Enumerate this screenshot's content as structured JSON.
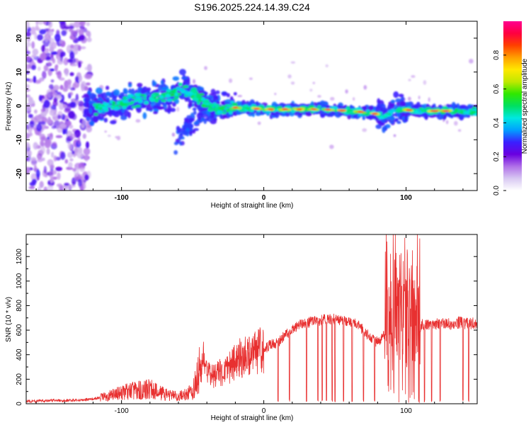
{
  "chart_data": [
    {
      "type": "heatmap",
      "title": "S196.2025.224.14.39.C24",
      "xlabel": "Height of straight line (km)",
      "ylabel": "Frequency (Hz)",
      "xlim": [
        -167,
        150
      ],
      "ylim": [
        -25,
        25
      ],
      "xticks": [
        -100,
        0,
        100
      ],
      "xtick_labels": [
        "-100",
        "0",
        "100"
      ],
      "yticks": [
        20,
        10,
        0,
        -10,
        -20
      ],
      "ytick_labels": [
        "20",
        "10",
        "0",
        "-10",
        "-20"
      ],
      "colorbar": {
        "label": "Normalized spectral amplitude",
        "range": [
          0,
          1
        ],
        "ticks": [
          0,
          0.2,
          0.4,
          0.6,
          0.8
        ],
        "tick_labels": [
          "0.0",
          "0.2",
          "0.4",
          "0.6",
          "0.8"
        ],
        "colors": [
          "#ffffff",
          "#d8c8f2",
          "#b070e8",
          "#6a00e0",
          "#3a20ff",
          "#00a0ff",
          "#00e8e0",
          "#00e060",
          "#30e800",
          "#c0e800",
          "#ffe800",
          "#ffa000",
          "#ff4000",
          "#ff0040",
          "#ff0090"
        ]
      },
      "ridge_frequency_vs_height": [
        {
          "x": -125,
          "y": -1
        },
        {
          "x": -110,
          "y": 0
        },
        {
          "x": -95,
          "y": 1.5
        },
        {
          "x": -80,
          "y": 2
        },
        {
          "x": -65,
          "y": 3
        },
        {
          "x": -55,
          "y": 5
        },
        {
          "x": -45,
          "y": 2
        },
        {
          "x": -35,
          "y": -1
        },
        {
          "x": -20,
          "y": -0.5
        },
        {
          "x": 0,
          "y": -1
        },
        {
          "x": 20,
          "y": -1
        },
        {
          "x": 40,
          "y": -1
        },
        {
          "x": 60,
          "y": -1.5
        },
        {
          "x": 75,
          "y": -2
        },
        {
          "x": 85,
          "y": -3
        },
        {
          "x": 95,
          "y": -1
        },
        {
          "x": 110,
          "y": -1.5
        },
        {
          "x": 130,
          "y": -1.5
        },
        {
          "x": 148,
          "y": -1.5
        }
      ]
    },
    {
      "type": "line",
      "xlabel": "Height of straight line (km)",
      "ylabel": "SNR (10 * v/v)",
      "xlim": [
        -167,
        150
      ],
      "ylim": [
        0,
        1380
      ],
      "xticks": [
        -100,
        0,
        100
      ],
      "xtick_labels": [
        "-100",
        "0",
        "100"
      ],
      "yticks": [
        0,
        200,
        400,
        600,
        800,
        1000,
        1200
      ],
      "ytick_labels": [
        "0",
        "200",
        "400",
        "600",
        "800",
        "1000",
        "1200"
      ],
      "series_color": "#e83030",
      "series": [
        {
          "name": "SNR",
          "x": [
            -167,
            -150,
            -130,
            -120,
            -110,
            -100,
            -90,
            -80,
            -70,
            -60,
            -50,
            -45,
            -40,
            -35,
            -30,
            -25,
            -20,
            -15,
            -10,
            -5,
            0,
            5,
            10,
            15,
            20,
            25,
            30,
            35,
            40,
            45,
            50,
            55,
            60,
            65,
            70,
            75,
            80,
            85,
            90,
            95,
            100,
            105,
            110,
            115,
            120,
            125,
            130,
            135,
            140,
            145,
            150
          ],
          "y": [
            20,
            25,
            30,
            40,
            60,
            90,
            110,
            120,
            80,
            60,
            100,
            300,
            240,
            220,
            260,
            280,
            350,
            380,
            400,
            430,
            450,
            480,
            500,
            560,
            600,
            640,
            660,
            670,
            680,
            690,
            690,
            680,
            660,
            650,
            600,
            540,
            500,
            560,
            640,
            700,
            660,
            650,
            640,
            640,
            650,
            650,
            650,
            660,
            660,
            650,
            660
          ]
        }
      ]
    }
  ]
}
